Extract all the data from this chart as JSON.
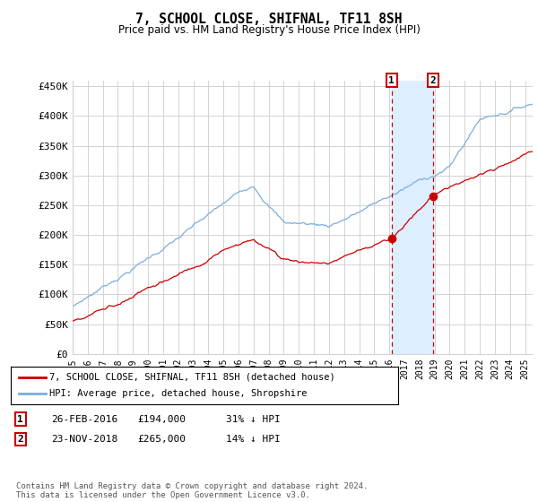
{
  "title": "7, SCHOOL CLOSE, SHIFNAL, TF11 8SH",
  "subtitle": "Price paid vs. HM Land Registry's House Price Index (HPI)",
  "ylabel_ticks": [
    "£0",
    "£50K",
    "£100K",
    "£150K",
    "£200K",
    "£250K",
    "£300K",
    "£350K",
    "£400K",
    "£450K"
  ],
  "ytick_values": [
    0,
    50000,
    100000,
    150000,
    200000,
    250000,
    300000,
    350000,
    400000,
    450000
  ],
  "ylim": [
    0,
    460000
  ],
  "xlim_start": 1995.0,
  "xlim_end": 2025.5,
  "line1_color": "#cc0000",
  "line2_color": "#7aaddc",
  "sale1_date": 2016.15,
  "sale1_price": 194000,
  "sale2_date": 2018.9,
  "sale2_price": 265000,
  "shade_color": "#ddeeff",
  "vline_color": "#cc0000",
  "legend_line1": "7, SCHOOL CLOSE, SHIFNAL, TF11 8SH (detached house)",
  "legend_line2": "HPI: Average price, detached house, Shropshire",
  "table_row1_num": "1",
  "table_row1_date": "26-FEB-2016",
  "table_row1_price": "£194,000",
  "table_row1_hpi": "31% ↓ HPI",
  "table_row2_num": "2",
  "table_row2_date": "23-NOV-2018",
  "table_row2_price": "£265,000",
  "table_row2_hpi": "14% ↓ HPI",
  "footer": "Contains HM Land Registry data © Crown copyright and database right 2024.\nThis data is licensed under the Open Government Licence v3.0.",
  "background_color": "#ffffff",
  "plot_bg_color": "#ffffff"
}
